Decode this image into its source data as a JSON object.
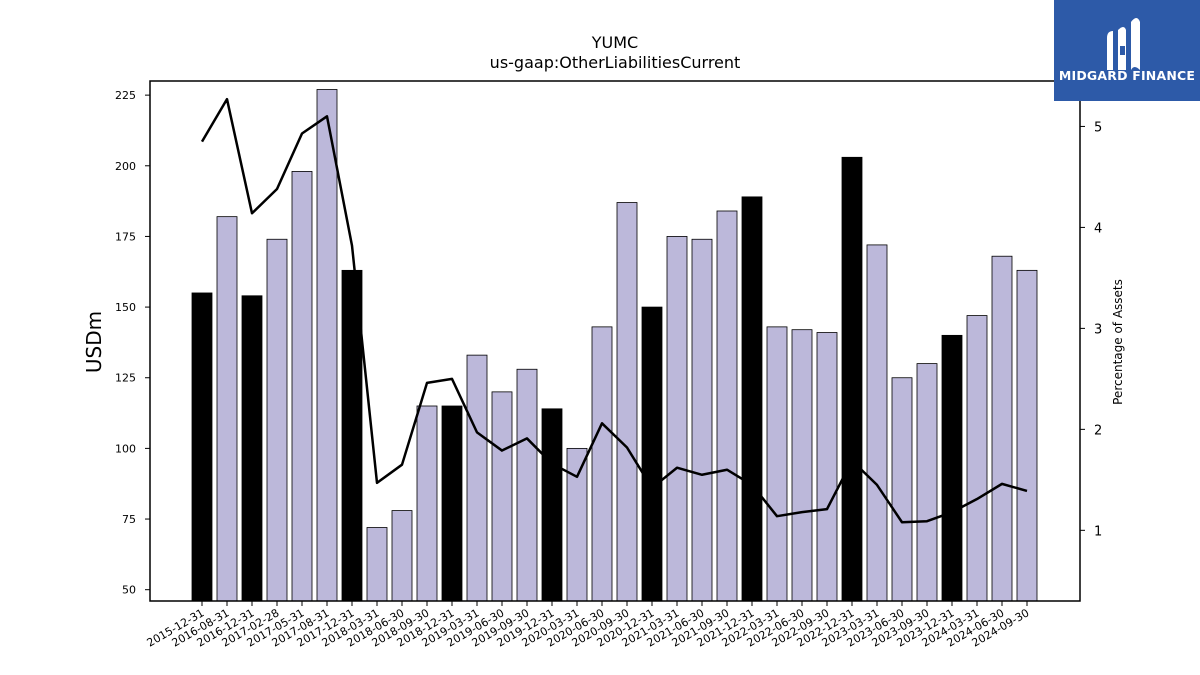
{
  "chart_data": {
    "type": "bar",
    "title": "YUMC",
    "subtitle": "us-gaap:OtherLiabilitiesCurrent",
    "ylabel": "USDm",
    "y2label": "Percentage of Assets",
    "ylim": [
      46,
      230
    ],
    "y2lim": [
      0.3,
      5.45
    ],
    "yticks": [
      50,
      75,
      100,
      125,
      150,
      175,
      200,
      225
    ],
    "y2ticks": [
      1,
      2,
      3,
      4,
      5
    ],
    "categories": [
      "2015-12-31",
      "2016-08-31",
      "2016-12-31",
      "2017-02-28",
      "2017-05-31",
      "2017-08-31",
      "2017-12-31",
      "2018-03-31",
      "2018-06-30",
      "2018-09-30",
      "2018-12-31",
      "2019-03-31",
      "2019-06-30",
      "2019-09-30",
      "2019-12-31",
      "2020-03-31",
      "2020-06-30",
      "2020-09-30",
      "2020-12-31",
      "2021-03-31",
      "2021-06-30",
      "2021-09-30",
      "2021-12-31",
      "2022-03-31",
      "2022-06-30",
      "2022-09-30",
      "2022-12-31",
      "2023-03-31",
      "2023-06-30",
      "2023-09-30",
      "2023-12-31",
      "2024-03-31",
      "2024-06-30",
      "2024-09-30"
    ],
    "series": [
      {
        "kind": "bar",
        "values": [
          155,
          182,
          154,
          174,
          198,
          227,
          163,
          72,
          78,
          115,
          115,
          133,
          120,
          128,
          114,
          100,
          143,
          187,
          150,
          175,
          174,
          184,
          189,
          143,
          142,
          141,
          203,
          172,
          125,
          130,
          140,
          147,
          168,
          163
        ],
        "annual": [
          true,
          false,
          true,
          false,
          false,
          false,
          true,
          false,
          false,
          false,
          true,
          false,
          false,
          false,
          true,
          false,
          false,
          false,
          true,
          false,
          false,
          false,
          true,
          false,
          false,
          false,
          true,
          false,
          false,
          false,
          true,
          false,
          false,
          false
        ],
        "annual_color": "#000000",
        "quarter_color": "#bcb8da"
      },
      {
        "kind": "line",
        "axis": "right",
        "color": "#000000",
        "values": [
          4.85,
          5.27,
          4.14,
          4.38,
          4.93,
          5.1,
          3.82,
          1.47,
          1.65,
          2.46,
          2.5,
          1.97,
          1.79,
          1.91,
          1.66,
          1.53,
          2.06,
          1.82,
          1.42,
          1.62,
          1.55,
          1.6,
          1.45,
          1.14,
          1.18,
          1.21,
          1.69,
          1.45,
          1.08,
          1.09,
          1.18,
          1.31,
          1.46,
          1.39
        ]
      }
    ]
  },
  "brand": {
    "name": "MIDGARD FINANCE",
    "color": "#2d5aa8"
  }
}
